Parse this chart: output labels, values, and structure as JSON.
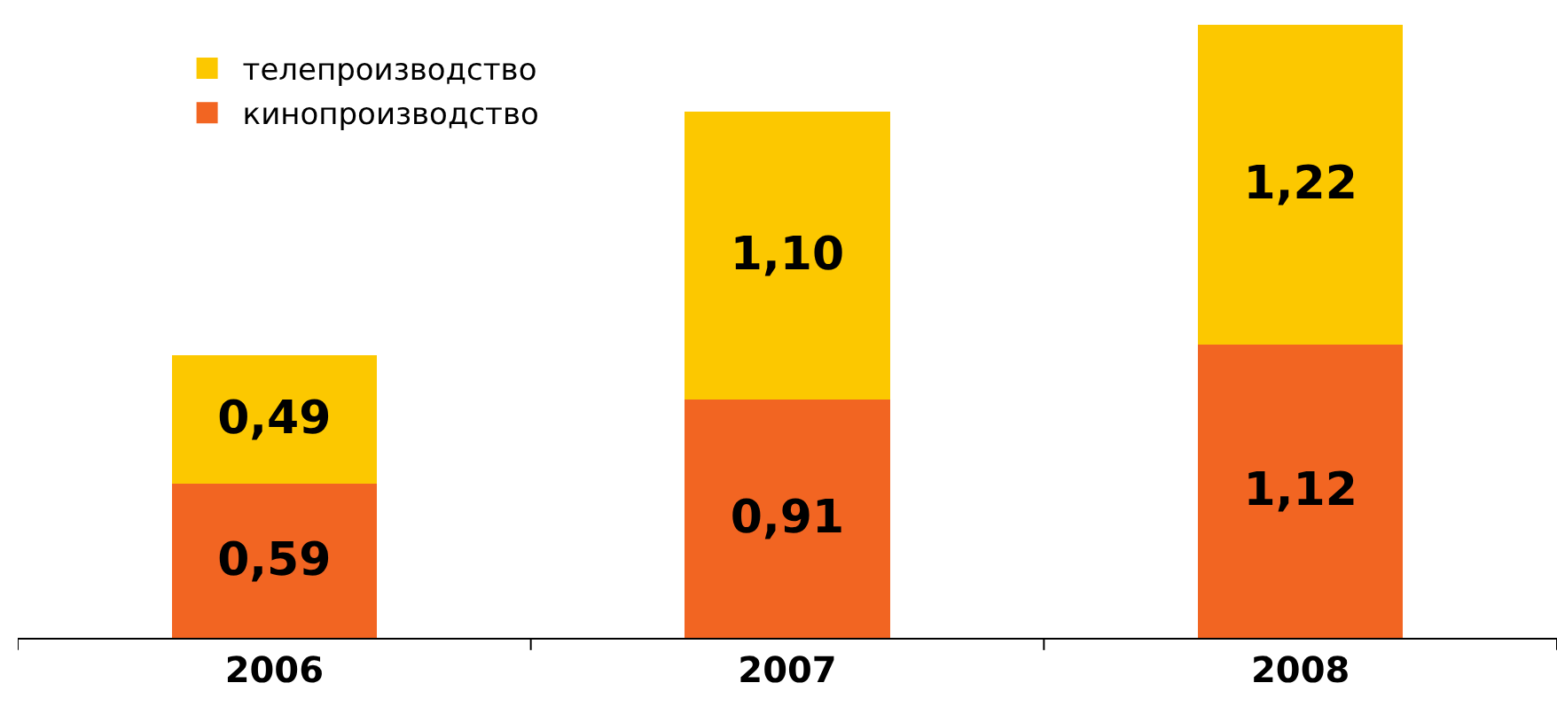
{
  "chart_data": {
    "type": "bar",
    "stacked": true,
    "categories": [
      "2006",
      "2007",
      "2008"
    ],
    "series": [
      {
        "name": "кинопроизводство",
        "color": "#f26522",
        "values": [
          0.59,
          0.91,
          1.12
        ],
        "value_labels": [
          "0,59",
          "0,91",
          "1,12"
        ]
      },
      {
        "name": "телепроизводство",
        "color": "#fcc800",
        "values": [
          0.49,
          1.1,
          1.22
        ],
        "value_labels": [
          "0,49",
          "1,10",
          "1,22"
        ]
      }
    ],
    "legend": "top left",
    "tick_labels": "x"
  }
}
